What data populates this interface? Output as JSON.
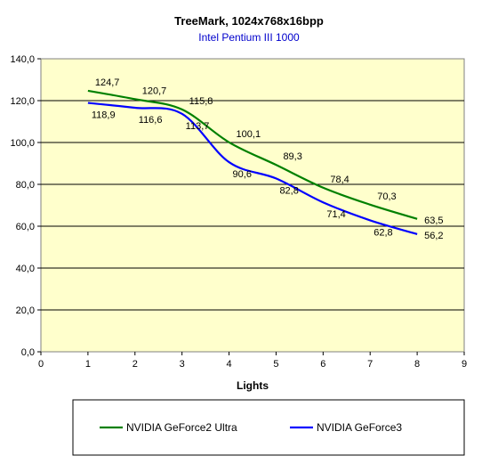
{
  "chart_data": {
    "type": "line",
    "title": "TreeMark, 1024x768x16bpp",
    "subtitle": "Intel Pentium III 1000",
    "xlabel": "Lights",
    "ylabel": "",
    "xlim": [
      0,
      9
    ],
    "ylim": [
      0,
      140
    ],
    "x_ticks": [
      "0",
      "1",
      "2",
      "3",
      "4",
      "5",
      "6",
      "7",
      "8",
      "9"
    ],
    "y_ticks": [
      "0,0",
      "20,0",
      "40,0",
      "60,0",
      "80,0",
      "100,0",
      "120,0",
      "140,0"
    ],
    "grid": "horizontal",
    "legend_position": "bottom",
    "plot_background": "#ffffcc",
    "x": [
      1,
      2,
      3,
      4,
      5,
      6,
      7,
      8
    ],
    "series": [
      {
        "name": "NVIDIA GeForce2 Ultra",
        "color": "#008000",
        "values": [
          124.7,
          120.7,
          115.8,
          100.1,
          89.3,
          78.4,
          70.3,
          63.5
        ],
        "labels": [
          "124,7",
          "120,7",
          "115,8",
          "100,1",
          "89,3",
          "78,4",
          "70,3",
          "63,5"
        ]
      },
      {
        "name": "NVIDIA GeForce3",
        "color": "#0000ff",
        "values": [
          118.9,
          116.6,
          113.7,
          90.6,
          82.8,
          71.4,
          62.8,
          56.2
        ],
        "labels": [
          "118,9",
          "116,6",
          "113,7",
          "90,6",
          "82,8",
          "71,4",
          "62,8",
          "56,2"
        ]
      }
    ]
  }
}
